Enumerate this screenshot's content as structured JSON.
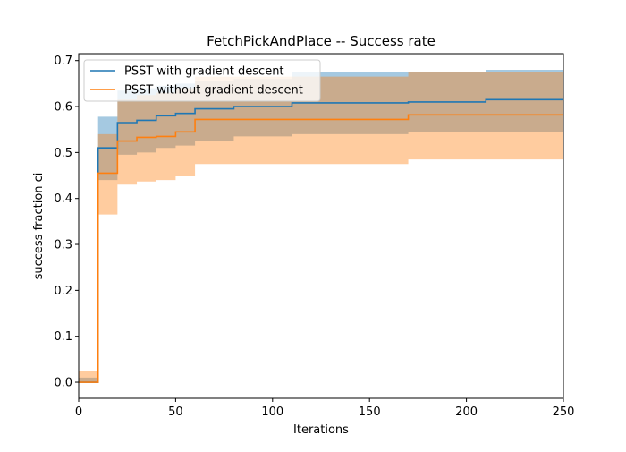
{
  "chart_data": {
    "type": "line",
    "title": "FetchPickAndPlace -- Success rate",
    "xlabel": "Iterations",
    "ylabel": "success fraction ci",
    "xlim": [
      0,
      250
    ],
    "ylim": [
      -0.035,
      0.715
    ],
    "x_ticks": [
      0,
      50,
      100,
      150,
      200,
      250
    ],
    "y_ticks": [
      0.0,
      0.1,
      0.2,
      0.3,
      0.4,
      0.5,
      0.6,
      0.7
    ],
    "grid": false,
    "legend_position": "top-left",
    "step": "post",
    "series": [
      {
        "name": "PSST with gradient descent",
        "color": "#1f77b4",
        "band_color": "#1f77b4",
        "band_opacity": 0.4,
        "x": [
          0,
          10,
          20,
          30,
          40,
          50,
          60,
          80,
          110,
          170,
          210,
          250
        ],
        "y": [
          0.0,
          0.51,
          0.565,
          0.57,
          0.58,
          0.585,
          0.595,
          0.6,
          0.608,
          0.61,
          0.615,
          0.615
        ],
        "lower": [
          0.0,
          0.44,
          0.495,
          0.5,
          0.51,
          0.515,
          0.525,
          0.535,
          0.54,
          0.545,
          0.545,
          0.545
        ],
        "upper": [
          0.01,
          0.578,
          0.635,
          0.64,
          0.645,
          0.65,
          0.655,
          0.66,
          0.675,
          0.675,
          0.68,
          0.68
        ]
      },
      {
        "name": "PSST without gradient descent",
        "color": "#ff7f0e",
        "band_color": "#ff7f0e",
        "band_opacity": 0.4,
        "x": [
          0,
          10,
          20,
          30,
          40,
          50,
          60,
          80,
          110,
          170,
          210,
          250
        ],
        "y": [
          0.0,
          0.455,
          0.525,
          0.533,
          0.535,
          0.545,
          0.572,
          0.572,
          0.572,
          0.582,
          0.582,
          0.582
        ],
        "lower": [
          0.0,
          0.365,
          0.43,
          0.437,
          0.44,
          0.448,
          0.475,
          0.475,
          0.475,
          0.485,
          0.485,
          0.485
        ],
        "upper": [
          0.025,
          0.54,
          0.615,
          0.625,
          0.63,
          0.64,
          0.665,
          0.665,
          0.665,
          0.675,
          0.675,
          0.675
        ]
      }
    ]
  }
}
